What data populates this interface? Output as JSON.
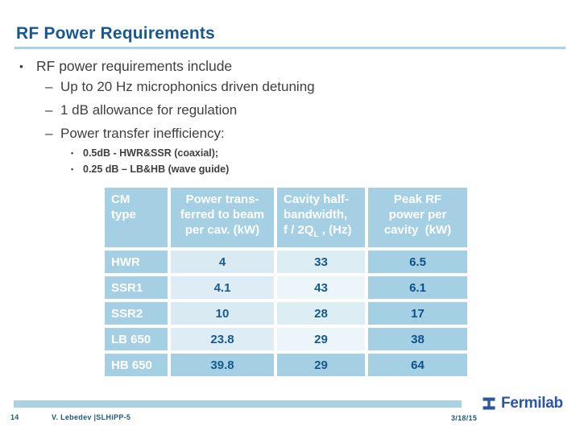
{
  "title": "RF Power Requirements",
  "bullets": {
    "level1": "RF power requirements include",
    "level1_marker": "•",
    "level2_marker": "–",
    "level3_marker": "•",
    "level2": [
      "Up to 20 Hz microphonics driven detuning",
      "1 dB allowance for regulation",
      "Power transfer inefficiency:"
    ],
    "level3": [
      "0.5dB - HWR&SSR (coaxial);",
      "0.25 dB – LB&HB (wave guide)"
    ]
  },
  "table": {
    "header": {
      "col1": [
        "CM",
        "type"
      ],
      "col2": [
        "Power trans-",
        "ferred to beam",
        "per cav. (kW)"
      ],
      "col3": [
        "Cavity half-",
        "bandwidth,"
      ],
      "col3_formula": {
        "pre": "f / 2Q",
        "sub": "L",
        "post": " , (Hz)"
      },
      "col4": [
        "Peak RF",
        "power per",
        "cavity  (kW)"
      ]
    },
    "rows": [
      {
        "cm_type": "HWR",
        "power_per_cav_kw": "4",
        "half_bandwidth_hz": "33",
        "peak_rf_kw": "6.5"
      },
      {
        "cm_type": "SSR1",
        "power_per_cav_kw": "4.1",
        "half_bandwidth_hz": "43",
        "peak_rf_kw": "6.1"
      },
      {
        "cm_type": "SSR2",
        "power_per_cav_kw": "10",
        "half_bandwidth_hz": "28",
        "peak_rf_kw": "17"
      },
      {
        "cm_type": "LB 650",
        "power_per_cav_kw": "23.8",
        "half_bandwidth_hz": "29",
        "peak_rf_kw": "38"
      },
      {
        "cm_type": "HB 650",
        "power_per_cav_kw": "39.8",
        "half_bandwidth_hz": "29",
        "peak_rf_kw": "64"
      }
    ]
  },
  "footer": {
    "page_number": "14",
    "credit": "V. Lebedev |SLHiPP-5",
    "date": "3/18/15",
    "logo_text": "Fermilab"
  },
  "colors": {
    "title_blue": "#18588f",
    "rule_light_blue": "#a9d3e4",
    "table_blue": "#a5d0e4",
    "cell_pale_blue": "#ddedf4",
    "data_text_blue": "#155a8c",
    "body_gray": "#3f3f3f",
    "fermilab_blue": "#2a56a4"
  }
}
